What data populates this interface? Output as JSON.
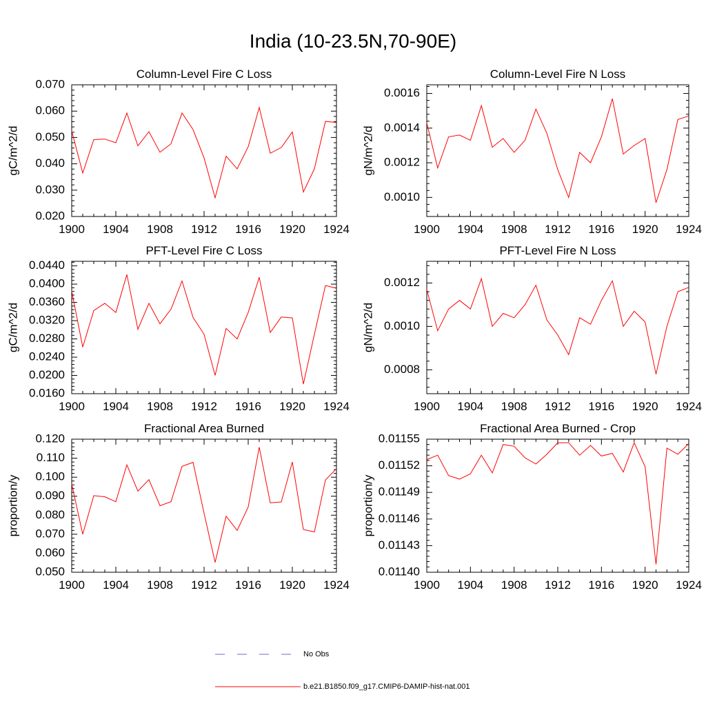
{
  "page": {
    "title": "India (10-23.5N,70-90E)"
  },
  "legend": {
    "obs_label": "No Obs",
    "model_label": "b.e21.B1850.f09_g17.CMIP6-DAMIP-hist-nat.001",
    "obs_color": "#6a6ad0",
    "model_color": "#ff0000"
  },
  "chart_data": [
    {
      "type": "line",
      "title": "Column-Level Fire C Loss",
      "ylabel": "gC/m^2/d",
      "xlim": [
        1900,
        1924
      ],
      "ylim": [
        0.02,
        0.07
      ],
      "xticks": [
        1900,
        1904,
        1908,
        1912,
        1916,
        1920,
        1924
      ],
      "yticks": [
        "0.020",
        "0.030",
        "0.040",
        "0.050",
        "0.060",
        "0.070"
      ],
      "x": [
        1900,
        1901,
        1902,
        1903,
        1904,
        1905,
        1906,
        1907,
        1908,
        1909,
        1910,
        1911,
        1912,
        1913,
        1914,
        1915,
        1916,
        1917,
        1918,
        1919,
        1920,
        1921,
        1922,
        1923,
        1924
      ],
      "series": [
        {
          "values": [
            0.0525,
            0.0365,
            0.0492,
            0.0494,
            0.048,
            0.0593,
            0.0468,
            0.0522,
            0.0444,
            0.0476,
            0.0593,
            0.053,
            0.0422,
            0.0271,
            0.0429,
            0.0381,
            0.0465,
            0.0614,
            0.044,
            0.0462,
            0.0521,
            0.0293,
            0.0381,
            0.0561,
            0.0557
          ]
        }
      ]
    },
    {
      "type": "line",
      "title": "Column-Level Fire N Loss",
      "ylabel": "gN/m^2/d",
      "xlim": [
        1900,
        1924
      ],
      "ylim": [
        0.00089,
        0.00165
      ],
      "xticks": [
        1900,
        1904,
        1908,
        1912,
        1916,
        1920,
        1924
      ],
      "yticks": [
        "0.0010",
        "0.0012",
        "0.0014",
        "0.0016"
      ],
      "x": [
        1900,
        1901,
        1902,
        1903,
        1904,
        1905,
        1906,
        1907,
        1908,
        1909,
        1910,
        1911,
        1912,
        1913,
        1914,
        1915,
        1916,
        1917,
        1918,
        1919,
        1920,
        1921,
        1922,
        1923,
        1924
      ],
      "series": [
        {
          "values": [
            0.00143,
            0.00117,
            0.00135,
            0.00136,
            0.00133,
            0.00153,
            0.00129,
            0.00134,
            0.00126,
            0.00133,
            0.00151,
            0.00137,
            0.00116,
            0.001,
            0.00126,
            0.0012,
            0.00135,
            0.00157,
            0.00125,
            0.0013,
            0.00134,
            0.00097,
            0.00116,
            0.00145,
            0.00147
          ]
        }
      ]
    },
    {
      "type": "line",
      "title": "PFT-Level Fire C Loss",
      "ylabel": "gC/m^2/d",
      "xlim": [
        1900,
        1924
      ],
      "ylim": [
        0.016,
        0.045
      ],
      "xticks": [
        1900,
        1904,
        1908,
        1912,
        1916,
        1920,
        1924
      ],
      "yticks": [
        "0.0160",
        "0.0200",
        "0.0240",
        "0.0280",
        "0.0320",
        "0.0360",
        "0.0400",
        "0.0440"
      ],
      "x": [
        1900,
        1901,
        1902,
        1903,
        1904,
        1905,
        1906,
        1907,
        1908,
        1909,
        1910,
        1911,
        1912,
        1913,
        1914,
        1915,
        1916,
        1917,
        1918,
        1919,
        1920,
        1921,
        1922,
        1923,
        1924
      ],
      "series": [
        {
          "values": [
            0.0385,
            0.0262,
            0.0342,
            0.0358,
            0.0338,
            0.0421,
            0.0301,
            0.0358,
            0.0313,
            0.0345,
            0.0407,
            0.0327,
            0.029,
            0.02,
            0.0303,
            0.028,
            0.0338,
            0.0415,
            0.0294,
            0.0328,
            0.0326,
            0.0181,
            0.029,
            0.0397,
            0.0391
          ]
        }
      ]
    },
    {
      "type": "line",
      "title": "PFT-Level Fire N Loss",
      "ylabel": "gN/m^2/d",
      "xlim": [
        1900,
        1924
      ],
      "ylim": [
        0.00069,
        0.0013
      ],
      "xticks": [
        1900,
        1904,
        1908,
        1912,
        1916,
        1920,
        1924
      ],
      "yticks": [
        "0.0008",
        "0.0010",
        "0.0012"
      ],
      "x": [
        1900,
        1901,
        1902,
        1903,
        1904,
        1905,
        1906,
        1907,
        1908,
        1909,
        1910,
        1911,
        1912,
        1913,
        1914,
        1915,
        1916,
        1917,
        1918,
        1919,
        1920,
        1921,
        1922,
        1923,
        1924
      ],
      "series": [
        {
          "values": [
            0.00117,
            0.00098,
            0.00108,
            0.00112,
            0.00108,
            0.00122,
            0.001,
            0.00106,
            0.00104,
            0.0011,
            0.00119,
            0.00103,
            0.00096,
            0.00087,
            0.00104,
            0.00101,
            0.00112,
            0.00121,
            0.001,
            0.00107,
            0.00102,
            0.00078,
            0.001,
            0.00116,
            0.00118
          ]
        }
      ]
    },
    {
      "type": "line",
      "title": "Fractional Area Burned",
      "ylabel": "proportion/y",
      "xlim": [
        1900,
        1924
      ],
      "ylim": [
        0.05,
        0.12
      ],
      "xticks": [
        1900,
        1904,
        1908,
        1912,
        1916,
        1920,
        1924
      ],
      "yticks": [
        "0.050",
        "0.060",
        "0.070",
        "0.080",
        "0.090",
        "0.100",
        "0.110",
        "0.120"
      ],
      "x": [
        1900,
        1901,
        1902,
        1903,
        1904,
        1905,
        1906,
        1907,
        1908,
        1909,
        1910,
        1911,
        1912,
        1913,
        1914,
        1915,
        1916,
        1917,
        1918,
        1919,
        1920,
        1921,
        1922,
        1923,
        1924
      ],
      "series": [
        {
          "values": [
            0.0965,
            0.07,
            0.0903,
            0.0897,
            0.0871,
            0.1065,
            0.0927,
            0.0987,
            0.085,
            0.0871,
            0.1057,
            0.1078,
            0.081,
            0.0552,
            0.0795,
            0.072,
            0.0843,
            0.1158,
            0.0865,
            0.087,
            0.108,
            0.0725,
            0.0712,
            0.0985,
            0.1045
          ]
        }
      ]
    },
    {
      "type": "line",
      "title": "Fractional Area Burned - Crop",
      "ylabel": "proportion/y",
      "xlim": [
        1900,
        1924
      ],
      "ylim": [
        0.0114,
        0.01155
      ],
      "xticks": [
        1900,
        1904,
        1908,
        1912,
        1916,
        1920,
        1924
      ],
      "yticks": [
        "0.01140",
        "0.01143",
        "0.01146",
        "0.01149",
        "0.01152",
        "0.01155"
      ],
      "x": [
        1900,
        1901,
        1902,
        1903,
        1904,
        1905,
        1906,
        1907,
        1908,
        1909,
        1910,
        1911,
        1912,
        1913,
        1914,
        1915,
        1916,
        1917,
        1918,
        1919,
        1920,
        1921,
        1922,
        1923,
        1924
      ],
      "series": [
        {
          "values": [
            0.011527,
            0.011532,
            0.011509,
            0.011505,
            0.011511,
            0.011532,
            0.011512,
            0.011544,
            0.011542,
            0.011529,
            0.011522,
            0.011533,
            0.011546,
            0.011546,
            0.011532,
            0.011543,
            0.011531,
            0.011534,
            0.011513,
            0.011546,
            0.011519,
            0.011409,
            0.01154,
            0.011533,
            0.011545
          ]
        }
      ]
    }
  ]
}
